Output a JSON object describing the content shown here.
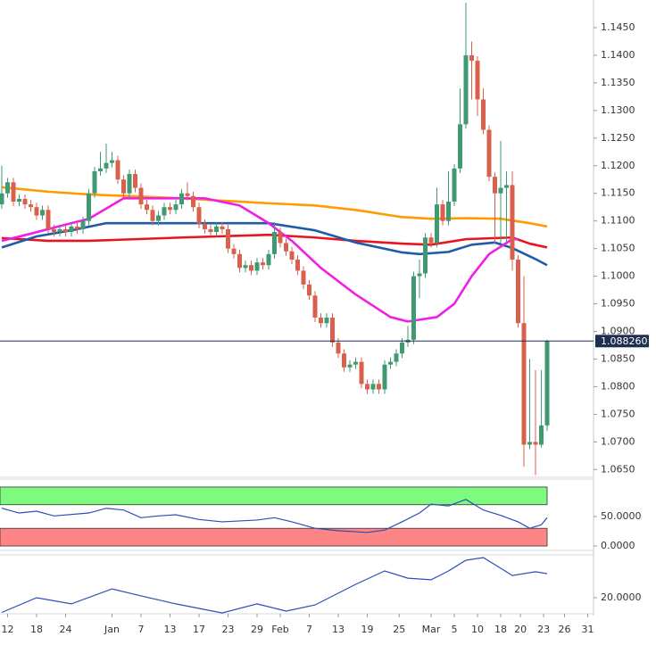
{
  "chart_data": [
    {
      "type": "candlestick",
      "up_color": "#3f9a72",
      "down_color": "#d8604c",
      "xlim": [
        0,
        102
      ],
      "ylim": [
        1.0636,
        1.15
      ],
      "x": [
        0,
        1,
        2,
        3,
        4,
        5,
        6,
        7,
        8,
        9,
        10,
        11,
        12,
        13,
        14,
        15,
        16,
        17,
        18,
        19,
        20,
        21,
        22,
        23,
        24,
        25,
        26,
        27,
        28,
        29,
        30,
        31,
        32,
        33,
        34,
        35,
        36,
        37,
        38,
        39,
        40,
        41,
        42,
        43,
        44,
        45,
        46,
        47,
        48,
        49,
        50,
        51,
        52,
        53,
        54,
        55,
        56,
        57,
        58,
        59,
        60,
        61,
        62,
        63,
        64,
        65,
        66,
        67,
        68,
        69,
        70,
        71,
        72,
        73,
        74,
        75,
        76,
        77,
        78,
        79,
        80,
        81,
        82,
        83,
        84,
        85,
        86,
        87,
        88,
        89,
        90,
        91,
        92,
        93,
        94
      ],
      "open": [
        1.113,
        1.115,
        1.117,
        1.1135,
        1.114,
        1.113,
        1.1125,
        1.111,
        1.112,
        1.1085,
        1.108,
        1.1085,
        1.108,
        1.109,
        1.1085,
        1.11,
        1.115,
        1.119,
        1.1195,
        1.1205,
        1.121,
        1.1175,
        1.115,
        1.1185,
        1.116,
        1.113,
        1.112,
        1.11,
        1.111,
        1.1125,
        1.112,
        1.113,
        1.115,
        1.1145,
        1.1125,
        1.1095,
        1.1085,
        1.108,
        1.109,
        1.1085,
        1.105,
        1.104,
        1.1015,
        1.102,
        1.101,
        1.1025,
        1.102,
        1.104,
        1.108,
        1.106,
        1.1045,
        1.103,
        1.101,
        1.0985,
        1.0965,
        1.0925,
        1.0915,
        1.0925,
        1.088,
        1.086,
        1.0835,
        1.084,
        1.0845,
        1.0805,
        1.0795,
        1.0805,
        1.0795,
        1.084,
        1.0845,
        1.086,
        1.088,
        1.0885,
        1.1,
        1.1005,
        1.107,
        1.106,
        1.113,
        1.11,
        1.1135,
        1.1195,
        1.1275,
        1.14,
        1.139,
        1.132,
        1.1265,
        1.118,
        1.115,
        1.116,
        1.1165,
        1.103,
        1.0915,
        1.0695,
        1.07,
        1.0695,
        1.073
      ],
      "high": [
        1.12,
        1.1178,
        1.1178,
        1.1148,
        1.1148,
        1.1138,
        1.1133,
        1.1128,
        1.1128,
        1.1093,
        1.1093,
        1.1093,
        1.1098,
        1.1098,
        1.1108,
        1.1158,
        1.1198,
        1.1225,
        1.124,
        1.1225,
        1.1218,
        1.1183,
        1.1193,
        1.1193,
        1.1168,
        1.1138,
        1.1128,
        1.1118,
        1.1133,
        1.1133,
        1.1138,
        1.1158,
        1.117,
        1.1153,
        1.1133,
        1.1103,
        1.1093,
        1.1098,
        1.1098,
        1.1093,
        1.1058,
        1.1048,
        1.1028,
        1.1028,
        1.1033,
        1.1033,
        1.1048,
        1.1098,
        1.1088,
        1.1068,
        1.1053,
        1.1038,
        1.1018,
        1.0993,
        1.0973,
        1.0933,
        1.0933,
        1.0933,
        1.0888,
        1.0868,
        1.0848,
        1.0853,
        1.0853,
        1.0813,
        1.0813,
        1.0813,
        1.0848,
        1.0853,
        1.0868,
        1.0888,
        1.091,
        1.1008,
        1.103,
        1.1078,
        1.1078,
        1.116,
        1.1138,
        1.119,
        1.1203,
        1.134,
        1.1495,
        1.1425,
        1.1398,
        1.134,
        1.1273,
        1.1188,
        1.1245,
        1.119,
        1.119,
        1.1038,
        1.1,
        1.085,
        1.083,
        1.083,
        1.0885
      ],
      "low": [
        1.1122,
        1.1142,
        1.1127,
        1.1127,
        1.1122,
        1.1117,
        1.1102,
        1.1102,
        1.1077,
        1.1072,
        1.1072,
        1.1072,
        1.1072,
        1.1077,
        1.1077,
        1.1092,
        1.1142,
        1.1182,
        1.1187,
        1.1197,
        1.1167,
        1.1142,
        1.1142,
        1.1152,
        1.1122,
        1.1112,
        1.1092,
        1.1092,
        1.1102,
        1.1112,
        1.1112,
        1.1122,
        1.1137,
        1.1117,
        1.1087,
        1.1077,
        1.1072,
        1.1072,
        1.1077,
        1.1042,
        1.1032,
        1.1007,
        1.1007,
        1.1002,
        1.1002,
        1.1012,
        1.1012,
        1.1032,
        1.1052,
        1.1037,
        1.1022,
        1.1002,
        1.0977,
        1.0957,
        1.0917,
        1.0907,
        1.0907,
        1.0872,
        1.0852,
        1.0827,
        1.0827,
        1.0832,
        1.0797,
        1.0787,
        1.0787,
        1.0787,
        1.0787,
        1.0832,
        1.0837,
        1.0852,
        1.0872,
        1.0877,
        1.096,
        1.0997,
        1.1052,
        1.1052,
        1.1092,
        1.1092,
        1.1127,
        1.1187,
        1.1267,
        1.132,
        1.129,
        1.1257,
        1.1172,
        1.106,
        1.106,
        1.106,
        1.101,
        1.0907,
        1.0655,
        1.0687,
        1.064,
        1.069,
        1.072
      ],
      "close": [
        1.115,
        1.117,
        1.1135,
        1.114,
        1.113,
        1.1125,
        1.111,
        1.112,
        1.1085,
        1.108,
        1.1085,
        1.108,
        1.109,
        1.1085,
        1.11,
        1.115,
        1.119,
        1.1195,
        1.1205,
        1.121,
        1.1175,
        1.115,
        1.1185,
        1.116,
        1.113,
        1.112,
        1.11,
        1.111,
        1.1125,
        1.112,
        1.113,
        1.115,
        1.1145,
        1.1125,
        1.1095,
        1.1085,
        1.108,
        1.109,
        1.1085,
        1.105,
        1.104,
        1.1015,
        1.102,
        1.101,
        1.1025,
        1.102,
        1.104,
        1.108,
        1.106,
        1.1045,
        1.103,
        1.101,
        1.0985,
        1.0965,
        1.0925,
        1.0915,
        1.0925,
        1.088,
        1.086,
        1.0835,
        1.084,
        1.0845,
        1.0805,
        1.0795,
        1.0805,
        1.0795,
        1.084,
        1.0845,
        1.086,
        1.088,
        1.0885,
        1.1,
        1.1005,
        1.107,
        1.106,
        1.113,
        1.11,
        1.1135,
        1.1195,
        1.1275,
        1.14,
        1.139,
        1.132,
        1.1265,
        1.118,
        1.115,
        1.116,
        1.1165,
        1.103,
        1.0915,
        1.0695,
        1.07,
        1.0695,
        1.073,
        1.08826
      ],
      "series": [
        {
          "color": "#ff9a00",
          "x": [
            0,
            8,
            15,
            31,
            46,
            54,
            61,
            69,
            74,
            80,
            86,
            91,
            94
          ],
          "values": [
            1.1161,
            1.1153,
            1.1148,
            1.1141,
            1.1132,
            1.1128,
            1.112,
            1.1107,
            1.1104,
            1.1105,
            1.1104,
            1.1096,
            1.109
          ]
        },
        {
          "color": "#e8141e",
          "x": [
            0,
            8,
            15,
            31,
            46,
            54,
            61,
            69,
            74,
            80,
            85,
            88,
            91,
            94
          ],
          "values": [
            1.1069,
            1.1064,
            1.1064,
            1.107,
            1.1075,
            1.107,
            1.1064,
            1.1059,
            1.1057,
            1.1067,
            1.1069,
            1.107,
            1.1059,
            1.1052
          ]
        },
        {
          "color": "#1f5bab",
          "x": [
            0,
            6,
            12,
            18,
            31,
            46,
            54,
            61,
            69,
            72,
            77,
            81,
            85,
            88,
            92,
            94
          ],
          "values": [
            1.1052,
            1.1072,
            1.1083,
            1.1096,
            1.1096,
            1.1096,
            1.1083,
            1.1061,
            1.1043,
            1.104,
            1.1044,
            1.1057,
            1.1061,
            1.1051,
            1.1031,
            1.102
          ]
        },
        {
          "color": "#f01ee6",
          "x": [
            0,
            5,
            9,
            15,
            21,
            27,
            35,
            41,
            46,
            50,
            55,
            61,
            67,
            70,
            75,
            78,
            81,
            84,
            88,
            89
          ],
          "values": [
            1.1064,
            1.1077,
            1.1088,
            1.1104,
            1.1141,
            1.1141,
            1.1141,
            1.1128,
            1.1096,
            1.1064,
            1.1015,
            1.0967,
            1.0926,
            1.0918,
            1.0926,
            1.095,
            1.1,
            1.104,
            1.1067,
            1.1067
          ]
        }
      ],
      "last_price": {
        "value": 1.08826,
        "label": "1.088260"
      },
      "last_price_color": "#1f2d50",
      "yticks": [
        {
          "value": 1.145,
          "label": "1.1450"
        },
        {
          "value": 1.14,
          "label": "1.1400"
        },
        {
          "value": 1.135,
          "label": "1.1350"
        },
        {
          "value": 1.13,
          "label": "1.1300"
        },
        {
          "value": 1.125,
          "label": "1.1250"
        },
        {
          "value": 1.12,
          "label": "1.1200"
        },
        {
          "value": 1.115,
          "label": "1.1150"
        },
        {
          "value": 1.11,
          "label": "1.1100"
        },
        {
          "value": 1.105,
          "label": "1.1050"
        },
        {
          "value": 1.1,
          "label": "1.1000"
        },
        {
          "value": 1.095,
          "label": "1.0950"
        },
        {
          "value": 1.09,
          "label": "1.0900"
        },
        {
          "value": 1.085,
          "label": "1.0850"
        },
        {
          "value": 1.08,
          "label": "1.0800"
        },
        {
          "value": 1.075,
          "label": "1.0750"
        },
        {
          "value": 1.07,
          "label": "1.0700"
        },
        {
          "value": 1.065,
          "label": "1.0650"
        }
      ],
      "xticks": [
        {
          "value": 1,
          "label": "12"
        },
        {
          "value": 6,
          "label": "18"
        },
        {
          "value": 11,
          "label": "24"
        },
        {
          "value": 19,
          "label": "Jan"
        },
        {
          "value": 24,
          "label": "7"
        },
        {
          "value": 29,
          "label": "13"
        },
        {
          "value": 34,
          "label": "17"
        },
        {
          "value": 39,
          "label": "23"
        },
        {
          "value": 44,
          "label": "29"
        },
        {
          "value": 48,
          "label": "Feb"
        },
        {
          "value": 53,
          "label": "7"
        },
        {
          "value": 58,
          "label": "13"
        },
        {
          "value": 63,
          "label": "19"
        },
        {
          "value": 68.5,
          "label": "25"
        },
        {
          "value": 74,
          "label": "Mar"
        },
        {
          "value": 78,
          "label": "5"
        },
        {
          "value": 82,
          "label": "10"
        },
        {
          "value": 86,
          "label": "18"
        },
        {
          "value": 89.4,
          "label": "20"
        },
        {
          "value": 93.4,
          "label": "23"
        },
        {
          "value": 97,
          "label": "26"
        },
        {
          "value": 101,
          "label": "31"
        }
      ]
    },
    {
      "type": "line",
      "color": "#2a4fb8",
      "xlim": [
        0,
        102
      ],
      "ylim": [
        -7.5,
        113.5
      ],
      "x": [
        0,
        3,
        6,
        9,
        15,
        18,
        21,
        24,
        27,
        30,
        34,
        38,
        44,
        47,
        50,
        54,
        58,
        63,
        66,
        69,
        72,
        74,
        77,
        80,
        83,
        86,
        89,
        91,
        93,
        94
      ],
      "values": [
        64,
        56,
        59,
        51,
        56,
        64,
        61,
        48,
        51,
        53,
        45,
        41,
        44,
        48,
        41,
        30,
        26,
        23,
        27,
        41,
        56,
        71,
        68,
        79,
        61,
        52,
        41,
        30,
        36,
        48
      ],
      "bands": [
        {
          "from": 70,
          "to": 100,
          "color": "#7efb7e"
        },
        {
          "from": 0,
          "to": 30,
          "color": "#fd8585"
        }
      ],
      "yticks": [
        {
          "value": 50,
          "label": "50.0000"
        },
        {
          "value": 0,
          "label": "0.0000"
        }
      ]
    },
    {
      "type": "line",
      "color": "#2a4fb8",
      "xlim": [
        0,
        102
      ],
      "ylim": [
        14,
        36
      ],
      "x": [
        0,
        6,
        12,
        19,
        24,
        30,
        38,
        44,
        49,
        54,
        61,
        66,
        70,
        74,
        77,
        80,
        83,
        86,
        88,
        92,
        94
      ],
      "values": [
        14.5,
        20,
        17.7,
        23.3,
        20.7,
        17.7,
        14.3,
        17.7,
        15,
        17.3,
        25,
        30,
        27.3,
        26.7,
        30,
        34,
        35,
        31,
        28.3,
        29.7,
        29
      ],
      "yticks": [
        {
          "value": 20,
          "label": "20.0000"
        }
      ]
    }
  ]
}
